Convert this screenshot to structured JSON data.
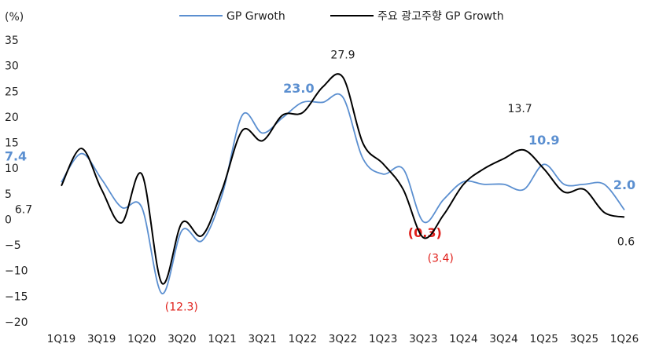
{
  "chart_data": {
    "type": "line",
    "y_unit": "(%)",
    "categories": [
      "1Q19",
      null,
      "3Q19",
      null,
      "1Q20",
      null,
      "3Q20",
      null,
      "1Q21",
      null,
      "3Q21",
      null,
      "1Q22",
      null,
      "3Q22",
      null,
      "1Q23",
      null,
      "3Q23",
      null,
      "1Q24",
      null,
      "3Q24",
      null,
      "1Q25",
      null,
      "3Q25",
      null,
      "1Q26"
    ],
    "series": [
      {
        "name": "GP Grwoth",
        "color": "#5b8fd0",
        "values": [
          7.4,
          13,
          8,
          2.5,
          2.5,
          -14.3,
          -2,
          -4,
          5,
          20.5,
          17,
          20,
          23.0,
          23,
          24,
          12,
          9,
          10,
          -0.3,
          4,
          7.5,
          7,
          7,
          6,
          10.9,
          7,
          7,
          7,
          2.0
        ],
        "value_labels": [
          "7.4",
          null,
          null,
          null,
          null,
          null,
          null,
          null,
          null,
          null,
          null,
          null,
          "23.0",
          null,
          null,
          null,
          null,
          null,
          "(0.3)",
          null,
          null,
          null,
          null,
          null,
          "10.9",
          null,
          null,
          null,
          "2.0"
        ]
      },
      {
        "name": "주요 광고주향 GP Growth",
        "color": "#000000",
        "values": [
          6.7,
          14,
          6,
          -0.5,
          9,
          -12.3,
          -0.5,
          -3,
          6,
          17.5,
          15.5,
          20.5,
          21,
          26,
          27.9,
          15,
          11,
          6,
          -3.4,
          1,
          7,
          10,
          12,
          13.7,
          10,
          5.5,
          6,
          1.5,
          0.6
        ],
        "value_labels": [
          "6.7",
          null,
          null,
          null,
          null,
          "(12.3)",
          null,
          null,
          null,
          null,
          null,
          null,
          null,
          null,
          "27.9",
          null,
          null,
          null,
          "(3.4)",
          null,
          null,
          null,
          null,
          "13.7",
          null,
          null,
          null,
          null,
          "0.6"
        ]
      }
    ],
    "ylim": [
      -20,
      35
    ],
    "yticks": [
      {
        "value": -20,
        "label": "−20"
      },
      {
        "value": -15,
        "label": "−15"
      },
      {
        "value": -10,
        "label": "−10"
      },
      {
        "value": -5,
        "label": "−5"
      },
      0,
      5,
      10,
      15,
      20,
      25,
      30,
      35
    ],
    "negative_label_color": "#e0201b"
  }
}
